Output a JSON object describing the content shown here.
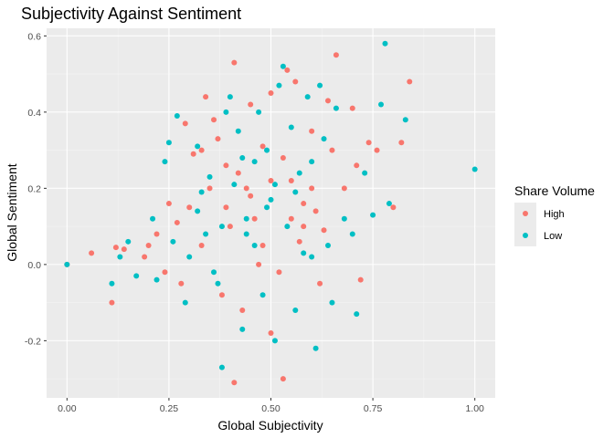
{
  "chart_data": {
    "type": "scatter",
    "title": "Subjectivity Against Sentiment",
    "xlabel": "Global Subjectivity",
    "ylabel": "Global Sentiment",
    "xlim": [
      -0.05,
      1.05
    ],
    "ylim": [
      -0.35,
      0.62
    ],
    "x_ticks": [
      0.0,
      0.25,
      0.5,
      0.75,
      1.0
    ],
    "x_tick_labels": [
      "0.00",
      "0.25",
      "0.50",
      "0.75",
      "1.00"
    ],
    "y_ticks": [
      -0.2,
      0.0,
      0.2,
      0.4,
      0.6
    ],
    "y_tick_labels": [
      "-0.2",
      "0.0",
      "0.2",
      "0.4",
      "0.6"
    ],
    "grid": true,
    "legend": {
      "title": "Share Volume",
      "placement": "right"
    },
    "series": [
      {
        "name": "High",
        "color": "#F8766D",
        "points": [
          [
            0.0,
            0.0
          ],
          [
            0.06,
            0.03
          ],
          [
            0.11,
            -0.1
          ],
          [
            0.12,
            0.045
          ],
          [
            0.14,
            0.04
          ],
          [
            0.19,
            0.02
          ],
          [
            0.22,
            0.08
          ],
          [
            0.25,
            0.16
          ],
          [
            0.27,
            0.11
          ],
          [
            0.29,
            0.37
          ],
          [
            0.31,
            0.29
          ],
          [
            0.33,
            0.3
          ],
          [
            0.34,
            0.44
          ],
          [
            0.36,
            0.38
          ],
          [
            0.37,
            0.33
          ],
          [
            0.39,
            0.15
          ],
          [
            0.41,
            0.53
          ],
          [
            0.41,
            -0.31
          ],
          [
            0.42,
            0.24
          ],
          [
            0.44,
            0.2
          ],
          [
            0.45,
            0.42
          ],
          [
            0.46,
            0.12
          ],
          [
            0.48,
            0.31
          ],
          [
            0.5,
            0.45
          ],
          [
            0.5,
            -0.18
          ],
          [
            0.53,
            -0.3
          ],
          [
            0.54,
            0.51
          ],
          [
            0.55,
            0.22
          ],
          [
            0.56,
            0.48
          ],
          [
            0.58,
            0.1
          ],
          [
            0.6,
            0.35
          ],
          [
            0.62,
            -0.05
          ],
          [
            0.64,
            0.43
          ],
          [
            0.65,
            0.3
          ],
          [
            0.66,
            0.55
          ],
          [
            0.68,
            0.2
          ],
          [
            0.7,
            0.41
          ],
          [
            0.71,
            0.26
          ],
          [
            0.72,
            -0.04
          ],
          [
            0.74,
            0.32
          ],
          [
            0.76,
            0.3
          ],
          [
            0.8,
            0.15
          ],
          [
            0.84,
            0.48
          ],
          [
            0.82,
            0.32
          ],
          [
            0.28,
            -0.05
          ],
          [
            0.33,
            0.05
          ],
          [
            0.38,
            -0.08
          ],
          [
            0.43,
            -0.12
          ],
          [
            0.47,
            0.0
          ],
          [
            0.52,
            -0.02
          ],
          [
            0.57,
            0.06
          ],
          [
            0.61,
            0.14
          ],
          [
            0.35,
            0.2
          ],
          [
            0.4,
            0.1
          ],
          [
            0.45,
            0.18
          ],
          [
            0.5,
            0.22
          ],
          [
            0.55,
            0.12
          ],
          [
            0.6,
            0.2
          ],
          [
            0.24,
            -0.02
          ],
          [
            0.2,
            0.05
          ],
          [
            0.3,
            0.15
          ],
          [
            0.39,
            0.26
          ],
          [
            0.48,
            0.05
          ],
          [
            0.53,
            0.28
          ],
          [
            0.58,
            0.16
          ],
          [
            0.63,
            0.09
          ]
        ]
      },
      {
        "name": "Low",
        "color": "#00BFC4",
        "points": [
          [
            0.0,
            0.0
          ],
          [
            0.11,
            -0.05
          ],
          [
            0.13,
            0.02
          ],
          [
            0.15,
            0.06
          ],
          [
            0.17,
            -0.03
          ],
          [
            0.21,
            0.12
          ],
          [
            0.24,
            0.27
          ],
          [
            0.25,
            0.32
          ],
          [
            0.27,
            0.39
          ],
          [
            0.29,
            -0.1
          ],
          [
            0.32,
            0.14
          ],
          [
            0.32,
            0.31
          ],
          [
            0.35,
            0.23
          ],
          [
            0.37,
            -0.05
          ],
          [
            0.38,
            -0.27
          ],
          [
            0.39,
            0.4
          ],
          [
            0.4,
            0.44
          ],
          [
            0.42,
            0.35
          ],
          [
            0.43,
            -0.17
          ],
          [
            0.44,
            0.08
          ],
          [
            0.46,
            0.27
          ],
          [
            0.47,
            0.4
          ],
          [
            0.49,
            0.3
          ],
          [
            0.5,
            0.17
          ],
          [
            0.51,
            -0.2
          ],
          [
            0.52,
            0.47
          ],
          [
            0.53,
            0.52
          ],
          [
            0.55,
            0.36
          ],
          [
            0.56,
            -0.12
          ],
          [
            0.57,
            0.24
          ],
          [
            0.59,
            0.44
          ],
          [
            0.6,
            0.02
          ],
          [
            0.61,
            -0.22
          ],
          [
            0.62,
            0.47
          ],
          [
            0.63,
            0.33
          ],
          [
            0.65,
            -0.1
          ],
          [
            0.66,
            0.41
          ],
          [
            0.68,
            0.12
          ],
          [
            0.7,
            0.08
          ],
          [
            0.71,
            -0.13
          ],
          [
            0.73,
            0.24
          ],
          [
            0.75,
            0.13
          ],
          [
            0.77,
            0.42
          ],
          [
            0.78,
            0.58
          ],
          [
            0.79,
            0.16
          ],
          [
            0.83,
            0.38
          ],
          [
            1.0,
            0.25
          ],
          [
            0.3,
            0.02
          ],
          [
            0.34,
            0.08
          ],
          [
            0.36,
            -0.02
          ],
          [
            0.41,
            0.21
          ],
          [
            0.44,
            0.12
          ],
          [
            0.46,
            0.05
          ],
          [
            0.49,
            0.15
          ],
          [
            0.51,
            0.21
          ],
          [
            0.54,
            0.1
          ],
          [
            0.56,
            0.19
          ],
          [
            0.58,
            0.03
          ],
          [
            0.6,
            0.27
          ],
          [
            0.64,
            0.05
          ],
          [
            0.22,
            -0.04
          ],
          [
            0.26,
            0.06
          ],
          [
            0.33,
            0.19
          ],
          [
            0.38,
            0.1
          ],
          [
            0.43,
            0.28
          ],
          [
            0.48,
            -0.08
          ]
        ]
      }
    ]
  }
}
